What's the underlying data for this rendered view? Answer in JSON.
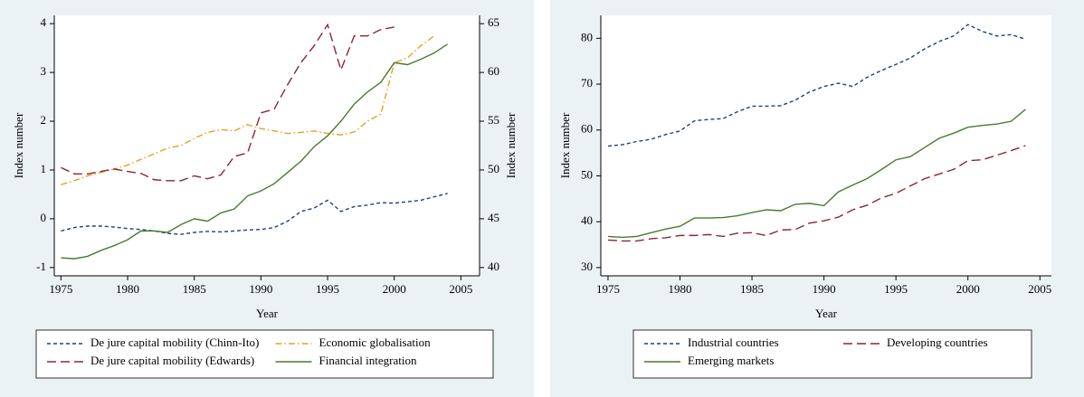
{
  "chart_data": [
    {
      "type": "line",
      "xlabel": "Year",
      "ylabel": "Index number",
      "y2label": "Index number",
      "x": [
        1975,
        1976,
        1977,
        1978,
        1979,
        1980,
        1981,
        1982,
        1983,
        1984,
        1985,
        1986,
        1987,
        1988,
        1989,
        1990,
        1991,
        1992,
        1993,
        1994,
        1995,
        1996,
        1997,
        1998,
        1999,
        2000,
        2001,
        2002,
        2003,
        2004
      ],
      "xlim": [
        1974.5,
        2006.4
      ],
      "xticks": [
        1975,
        1980,
        1985,
        1990,
        1995,
        2000,
        2005
      ],
      "ylim": [
        -1.17,
        4.17
      ],
      "yticks": [
        -1,
        0,
        1,
        2,
        3,
        4
      ],
      "y2lim": [
        39.15,
        65.85
      ],
      "y2ticks": [
        40,
        45,
        50,
        55,
        60,
        65
      ],
      "series": [
        {
          "name": "De jure capital mobility (Chinn-Ito)",
          "color": "#1f3f7a",
          "dash": "dashed",
          "values": [
            -0.25,
            -0.18,
            -0.15,
            -0.15,
            -0.17,
            -0.2,
            -0.22,
            -0.25,
            -0.3,
            -0.32,
            -0.28,
            -0.26,
            -0.27,
            -0.25,
            -0.23,
            -0.22,
            -0.18,
            -0.05,
            0.15,
            0.22,
            0.38,
            0.15,
            0.25,
            0.28,
            0.33,
            0.32,
            0.35,
            0.38,
            0.45,
            0.52
          ]
        },
        {
          "name": "Economic globalisation",
          "color": "#e8a020",
          "dash": "dashdot",
          "axis": "y2",
          "values": [
            48.5,
            48.9,
            49.4,
            49.75,
            50.1,
            50.5,
            51.1,
            51.65,
            52.25,
            52.5,
            53.25,
            53.85,
            54.15,
            54.0,
            54.65,
            54.25,
            54.0,
            53.75,
            53.85,
            54.0,
            53.75,
            53.6,
            53.9,
            55.0,
            55.75,
            61.0,
            61.5,
            62.75,
            63.75,
            null
          ]
        },
        {
          "name": "De jure capital mobility (Edwards)",
          "color": "#8b2635",
          "dash": "longdash",
          "values": [
            1.05,
            0.92,
            0.92,
            0.97,
            1.02,
            0.97,
            0.93,
            0.8,
            0.78,
            0.78,
            0.88,
            0.82,
            0.9,
            1.28,
            1.35,
            2.17,
            2.25,
            2.75,
            3.2,
            3.55,
            3.98,
            3.05,
            3.75,
            3.75,
            3.88,
            3.93,
            null,
            null,
            null,
            null
          ]
        },
        {
          "name": "Financial integration",
          "color": "#4a7a2e",
          "dash": "solid",
          "values": [
            -0.8,
            -0.82,
            -0.77,
            -0.65,
            -0.55,
            -0.43,
            -0.25,
            -0.25,
            -0.28,
            -0.12,
            0.0,
            -0.05,
            0.12,
            0.2,
            0.47,
            0.57,
            0.72,
            0.95,
            1.18,
            1.48,
            1.7,
            2.0,
            2.35,
            2.6,
            2.8,
            3.2,
            3.16,
            3.27,
            3.4,
            3.58
          ]
        }
      ]
    },
    {
      "type": "line",
      "xlabel": "Year",
      "ylabel": "Index number",
      "x": [
        1975,
        1976,
        1977,
        1978,
        1979,
        1980,
        1981,
        1982,
        1983,
        1984,
        1985,
        1986,
        1987,
        1988,
        1989,
        1990,
        1991,
        1992,
        1993,
        1994,
        1995,
        1996,
        1997,
        1998,
        1999,
        2000,
        2001,
        2002,
        2003,
        2004
      ],
      "xlim": [
        1974.5,
        2005.8
      ],
      "xticks": [
        1975,
        1980,
        1985,
        1990,
        1995,
        2000,
        2005
      ],
      "ylim": [
        28.2,
        85.0
      ],
      "yticks": [
        30,
        40,
        50,
        60,
        70,
        80
      ],
      "series": [
        {
          "name": "Industrial countries",
          "color": "#1f3f7a",
          "dash": "dashed",
          "values": [
            56.5,
            56.8,
            57.5,
            58,
            59,
            59.8,
            62,
            62.3,
            62.5,
            64,
            65.2,
            65.2,
            65.3,
            66.5,
            68.3,
            69.5,
            70.2,
            69.5,
            71.5,
            73,
            74.3,
            75.7,
            77.7,
            79.3,
            80.5,
            83,
            81.5,
            80.5,
            80.8,
            79.8
          ]
        },
        {
          "name": "Developing countries",
          "color": "#8b2635",
          "dash": "longdash",
          "values": [
            36,
            35.8,
            35.8,
            36.3,
            36.5,
            37,
            37,
            37.2,
            36.8,
            37.5,
            37.6,
            37,
            38.2,
            38.3,
            39.7,
            40.2,
            41,
            42.6,
            43.6,
            45.2,
            46.2,
            47.8,
            49.4,
            50.4,
            51.4,
            53.3,
            53.5,
            54.5,
            55.5,
            56.6
          ]
        },
        {
          "name": "Emerging markets",
          "color": "#4a7a2e",
          "dash": "solid",
          "values": [
            36.8,
            36.6,
            36.8,
            37.6,
            38.4,
            39,
            40.8,
            40.8,
            40.9,
            41.3,
            42,
            42.6,
            42.4,
            43.8,
            44,
            43.5,
            46.5,
            48,
            49.4,
            51.4,
            53.5,
            54.2,
            56.2,
            58.2,
            59.3,
            60.6,
            61,
            61.3,
            61.9,
            64.5
          ]
        }
      ]
    }
  ]
}
